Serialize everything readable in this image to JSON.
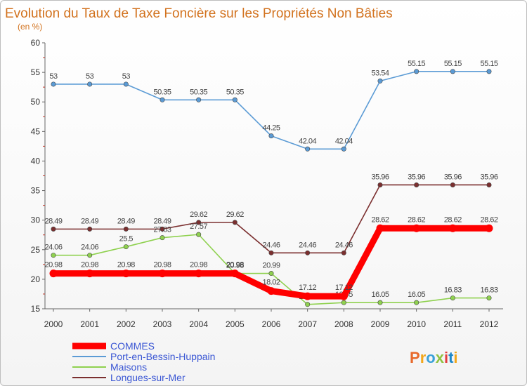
{
  "chart_data": {
    "type": "line",
    "title": "Evolution du Taux de Taxe Foncière sur les Propriétés Non Bâties",
    "subtitle": "(en %)",
    "x": [
      "2000",
      "2001",
      "2002",
      "2003",
      "2004",
      "2005",
      "2006",
      "2007",
      "2008",
      "2009",
      "2010",
      "2011",
      "2012"
    ],
    "ylim": [
      15,
      60
    ],
    "yticks": [
      15,
      20,
      25,
      30,
      35,
      40,
      45,
      50,
      55,
      60
    ],
    "ytick_labels": [
      "15",
      "20",
      "25",
      "30",
      "35",
      "40",
      "45",
      "50",
      "55",
      "60"
    ],
    "grid": false,
    "legend_position": "bottom-left",
    "series": [
      {
        "name": "COMMES",
        "color": "#ff0000",
        "values": [
          20.98,
          20.98,
          20.98,
          20.98,
          20.98,
          20.98,
          18.02,
          17.12,
          17.12,
          28.62,
          28.62,
          28.62,
          28.62
        ],
        "labels": [
          "20.98",
          "20.98",
          "20.98",
          "20.98",
          "20.98",
          "20.98",
          "18.02",
          "17.12",
          "17.12",
          "28.62",
          "28.62",
          "28.62",
          "28.62"
        ]
      },
      {
        "name": "Port-en-Bessin-Huppain",
        "color": "#5b9bd5",
        "values": [
          53,
          53,
          53,
          50.35,
          50.35,
          50.35,
          44.25,
          42.04,
          42.04,
          53.54,
          55.15,
          55.15,
          55.15
        ],
        "labels": [
          "53",
          "53",
          "53",
          "50.35",
          "50.35",
          "50.35",
          "44.25",
          "42.04",
          "42.04",
          "53.54",
          "55.15",
          "55.15",
          "55.15"
        ]
      },
      {
        "name": "Maisons",
        "color": "#8fd14f",
        "values": [
          24.06,
          24.06,
          25.5,
          27.03,
          27.57,
          20.98,
          20.99,
          15.74,
          16.05,
          16.05,
          16.05,
          16.83,
          16.83
        ],
        "labels": [
          "24.06",
          "24.06",
          "25.5",
          "27.03",
          "27.57",
          "20.98",
          "20.99",
          "15.74",
          "16.05",
          "16.05",
          "16.05",
          "16.83",
          "16.83"
        ]
      },
      {
        "name": "Longues-sur-Mer",
        "color": "#7b2f2f",
        "values": [
          28.49,
          28.49,
          28.49,
          28.49,
          29.62,
          29.62,
          24.46,
          24.46,
          24.46,
          35.96,
          35.96,
          35.96,
          35.96
        ],
        "labels": [
          "28.49",
          "28.49",
          "28.49",
          "28.49",
          "29.62",
          "29.62",
          "24.46",
          "24.46",
          "24.46",
          "35.96",
          "35.96",
          "35.96",
          "35.96"
        ]
      }
    ]
  },
  "logo": {
    "text": "Proxiti",
    "colors": [
      "#e8692b",
      "#f2a71b",
      "#3aa1d8",
      "#8fc240",
      "#e23d3d",
      "#1e88c9",
      "#f2a71b"
    ]
  }
}
